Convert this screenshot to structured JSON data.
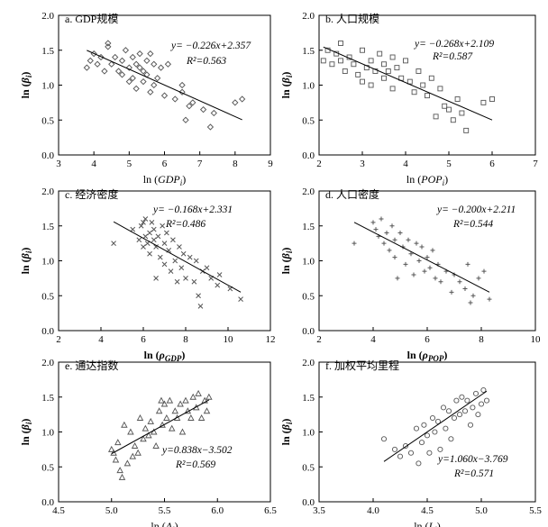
{
  "chart_data": [
    {
      "type": "scatter",
      "title": "a. GDP规模",
      "xlabel": "ln (GDP_i)",
      "ylabel": "ln (β_i)",
      "xlim": [
        3,
        9
      ],
      "ylim": [
        0,
        2
      ],
      "x_ticks": [
        "3",
        "4",
        "5",
        "6",
        "7",
        "8",
        "9"
      ],
      "y_ticks": [
        "0.0",
        "0.5",
        "1.0",
        "1.5",
        "2.0"
      ],
      "marker": "diamond",
      "equation": "y= −0.226x+2.357",
      "r2": "R²=0.563",
      "fit": {
        "slope": -0.226,
        "intercept": 2.357,
        "x_range": [
          3.8,
          8.2
        ]
      },
      "points": [
        [
          3.8,
          1.25
        ],
        [
          3.9,
          1.35
        ],
        [
          4.0,
          1.45
        ],
        [
          4.1,
          1.3
        ],
        [
          4.2,
          1.4
        ],
        [
          4.3,
          1.2
        ],
        [
          4.4,
          1.55
        ],
        [
          4.4,
          1.6
        ],
        [
          4.5,
          1.3
        ],
        [
          4.6,
          1.4
        ],
        [
          4.7,
          1.2
        ],
        [
          4.8,
          1.35
        ],
        [
          4.8,
          1.15
        ],
        [
          4.9,
          1.5
        ],
        [
          5.0,
          1.25
        ],
        [
          5.0,
          1.05
        ],
        [
          5.1,
          1.4
        ],
        [
          5.1,
          1.1
        ],
        [
          5.2,
          1.3
        ],
        [
          5.2,
          0.95
        ],
        [
          5.3,
          1.25
        ],
        [
          5.3,
          1.45
        ],
        [
          5.4,
          1.2
        ],
        [
          5.4,
          1.05
        ],
        [
          5.5,
          1.35
        ],
        [
          5.5,
          1.15
        ],
        [
          5.6,
          0.9
        ],
        [
          5.6,
          1.45
        ],
        [
          5.7,
          1.3
        ],
        [
          5.7,
          1.0
        ],
        [
          5.8,
          1.1
        ],
        [
          5.9,
          1.25
        ],
        [
          6.0,
          0.85
        ],
        [
          6.1,
          1.3
        ],
        [
          6.3,
          0.8
        ],
        [
          6.5,
          1.0
        ],
        [
          6.5,
          0.9
        ],
        [
          6.6,
          0.5
        ],
        [
          6.7,
          0.7
        ],
        [
          6.8,
          0.75
        ],
        [
          7.1,
          0.65
        ],
        [
          7.3,
          0.4
        ],
        [
          7.4,
          0.6
        ],
        [
          8.0,
          0.75
        ],
        [
          8.2,
          0.8
        ]
      ]
    },
    {
      "type": "scatter",
      "title": "b. 人口规模",
      "xlabel": "ln (POP_i)",
      "ylabel": "ln (β_i)",
      "xlim": [
        2,
        7
      ],
      "ylim": [
        0,
        2
      ],
      "x_ticks": [
        "2",
        "3",
        "4",
        "5",
        "6",
        "7"
      ],
      "y_ticks": [
        "0.0",
        "0.5",
        "1.0",
        "1.5",
        "2.0"
      ],
      "marker": "square",
      "equation": "y= −0.268x+2.109",
      "r2": "R²=0.587",
      "fit": {
        "slope": -0.268,
        "intercept": 2.109,
        "x_range": [
          2.1,
          6.0
        ]
      },
      "points": [
        [
          2.1,
          1.35
        ],
        [
          2.2,
          1.5
        ],
        [
          2.3,
          1.3
        ],
        [
          2.4,
          1.45
        ],
        [
          2.5,
          1.6
        ],
        [
          2.5,
          1.35
        ],
        [
          2.6,
          1.2
        ],
        [
          2.7,
          1.4
        ],
        [
          2.8,
          1.3
        ],
        [
          2.9,
          1.15
        ],
        [
          3.0,
          1.5
        ],
        [
          3.0,
          1.05
        ],
        [
          3.1,
          1.25
        ],
        [
          3.2,
          1.35
        ],
        [
          3.2,
          1.0
        ],
        [
          3.3,
          1.2
        ],
        [
          3.4,
          1.45
        ],
        [
          3.5,
          1.1
        ],
        [
          3.5,
          1.3
        ],
        [
          3.6,
          1.2
        ],
        [
          3.7,
          1.4
        ],
        [
          3.7,
          0.95
        ],
        [
          3.8,
          1.25
        ],
        [
          3.9,
          1.1
        ],
        [
          4.0,
          1.35
        ],
        [
          4.1,
          1.05
        ],
        [
          4.2,
          0.9
        ],
        [
          4.3,
          1.2
        ],
        [
          4.4,
          1.0
        ],
        [
          4.5,
          0.85
        ],
        [
          4.6,
          1.1
        ],
        [
          4.7,
          0.55
        ],
        [
          4.8,
          0.95
        ],
        [
          4.9,
          0.7
        ],
        [
          5.0,
          0.65
        ],
        [
          5.1,
          0.5
        ],
        [
          5.2,
          0.8
        ],
        [
          5.3,
          0.6
        ],
        [
          5.4,
          0.35
        ],
        [
          5.8,
          0.75
        ],
        [
          6.0,
          0.8
        ]
      ]
    },
    {
      "type": "scatter",
      "title": "c. 经济密度",
      "xlabel": "ln (ρ_GDP)",
      "ylabel": "ln (β_i)",
      "xlim": [
        2,
        12
      ],
      "ylim": [
        0,
        2
      ],
      "x_ticks": [
        "2",
        "4",
        "6",
        "8",
        "10",
        "12"
      ],
      "y_ticks": [
        "0.0",
        "0.5",
        "1.0",
        "1.5",
        "2.0"
      ],
      "marker": "x",
      "equation": "y= −0.168x+2.331",
      "r2": "R²=0.486",
      "fit": {
        "slope": -0.168,
        "intercept": 2.331,
        "x_range": [
          4.6,
          10.6
        ]
      },
      "points": [
        [
          4.6,
          1.25
        ],
        [
          5.5,
          1.45
        ],
        [
          5.8,
          1.3
        ],
        [
          5.9,
          1.5
        ],
        [
          6.0,
          1.2
        ],
        [
          6.0,
          1.55
        ],
        [
          6.1,
          1.35
        ],
        [
          6.1,
          1.6
        ],
        [
          6.2,
          1.25
        ],
        [
          6.3,
          1.4
        ],
        [
          6.3,
          1.1
        ],
        [
          6.4,
          1.55
        ],
        [
          6.5,
          1.3
        ],
        [
          6.5,
          1.45
        ],
        [
          6.6,
          1.2
        ],
        [
          6.6,
          0.75
        ],
        [
          6.7,
          1.35
        ],
        [
          6.8,
          1.05
        ],
        [
          6.9,
          1.5
        ],
        [
          7.0,
          1.25
        ],
        [
          7.0,
          0.95
        ],
        [
          7.1,
          1.4
        ],
        [
          7.2,
          1.15
        ],
        [
          7.3,
          0.85
        ],
        [
          7.4,
          1.3
        ],
        [
          7.5,
          1.0
        ],
        [
          7.6,
          0.7
        ],
        [
          7.7,
          1.2
        ],
        [
          7.8,
          0.9
        ],
        [
          7.9,
          1.1
        ],
        [
          8.0,
          0.75
        ],
        [
          8.2,
          1.05
        ],
        [
          8.4,
          0.7
        ],
        [
          8.5,
          1.0
        ],
        [
          8.6,
          0.5
        ],
        [
          8.7,
          0.35
        ],
        [
          8.8,
          0.85
        ],
        [
          9.0,
          0.9
        ],
        [
          9.2,
          0.75
        ],
        [
          9.5,
          0.65
        ],
        [
          9.6,
          0.8
        ],
        [
          10.1,
          0.6
        ],
        [
          10.6,
          0.45
        ]
      ]
    },
    {
      "type": "scatter",
      "title": "d. 人口密度",
      "xlabel": "ln (ρ_POP)",
      "ylabel": "ln (β_i)",
      "xlim": [
        2,
        10
      ],
      "ylim": [
        0,
        2
      ],
      "x_ticks": [
        "2",
        "4",
        "6",
        "8",
        "10"
      ],
      "y_ticks": [
        "0.0",
        "0.5",
        "1.0",
        "1.5",
        "2.0"
      ],
      "marker": "plus",
      "equation": "y= −0.200x+2.211",
      "r2": "R²=0.544",
      "fit": {
        "slope": -0.2,
        "intercept": 2.211,
        "x_range": [
          3.3,
          8.3
        ]
      },
      "points": [
        [
          3.3,
          1.25
        ],
        [
          4.0,
          1.55
        ],
        [
          4.1,
          1.45
        ],
        [
          4.2,
          1.35
        ],
        [
          4.3,
          1.6
        ],
        [
          4.4,
          1.25
        ],
        [
          4.5,
          1.4
        ],
        [
          4.6,
          1.15
        ],
        [
          4.7,
          1.5
        ],
        [
          4.8,
          1.3
        ],
        [
          4.8,
          1.05
        ],
        [
          4.9,
          0.75
        ],
        [
          5.0,
          1.4
        ],
        [
          5.1,
          1.2
        ],
        [
          5.2,
          0.95
        ],
        [
          5.3,
          1.3
        ],
        [
          5.4,
          1.1
        ],
        [
          5.5,
          0.8
        ],
        [
          5.6,
          1.25
        ],
        [
          5.7,
          1.0
        ],
        [
          5.8,
          1.2
        ],
        [
          5.9,
          0.85
        ],
        [
          6.0,
          1.05
        ],
        [
          6.1,
          0.9
        ],
        [
          6.2,
          1.15
        ],
        [
          6.3,
          0.75
        ],
        [
          6.4,
          0.95
        ],
        [
          6.5,
          0.7
        ],
        [
          6.7,
          0.85
        ],
        [
          6.9,
          0.55
        ],
        [
          7.0,
          0.8
        ],
        [
          7.2,
          0.7
        ],
        [
          7.4,
          0.6
        ],
        [
          7.5,
          0.95
        ],
        [
          7.6,
          0.4
        ],
        [
          7.7,
          0.5
        ],
        [
          7.9,
          0.75
        ],
        [
          8.1,
          0.85
        ],
        [
          8.3,
          0.45
        ]
      ]
    },
    {
      "type": "scatter",
      "title": "e. 通达指数",
      "xlabel": "ln (A_i)",
      "ylabel": "ln (β_i)",
      "xlim": [
        4.5,
        6.5
      ],
      "ylim": [
        0,
        2
      ],
      "x_ticks": [
        "4.5",
        "5.0",
        "5.5",
        "6.0",
        "6.5"
      ],
      "y_ticks": [
        "0.0",
        "0.5",
        "1.0",
        "1.5",
        "2.0"
      ],
      "marker": "triangle",
      "equation": "y=0.838x−3.502",
      "r2": "R²=0.569",
      "fit": {
        "slope": 0.838,
        "intercept": -3.502,
        "x_range": [
          5.0,
          5.92
        ]
      },
      "points": [
        [
          5.0,
          0.75
        ],
        [
          5.02,
          0.7
        ],
        [
          5.04,
          0.6
        ],
        [
          5.06,
          0.85
        ],
        [
          5.08,
          0.45
        ],
        [
          5.1,
          0.35
        ],
        [
          5.12,
          1.1
        ],
        [
          5.15,
          0.55
        ],
        [
          5.18,
          1.0
        ],
        [
          5.2,
          0.65
        ],
        [
          5.22,
          0.8
        ],
        [
          5.25,
          0.7
        ],
        [
          5.27,
          1.2
        ],
        [
          5.3,
          0.9
        ],
        [
          5.32,
          1.05
        ],
        [
          5.35,
          0.95
        ],
        [
          5.37,
          1.15
        ],
        [
          5.4,
          1.0
        ],
        [
          5.42,
          0.8
        ],
        [
          5.45,
          1.3
        ],
        [
          5.47,
          1.45
        ],
        [
          5.48,
          1.1
        ],
        [
          5.5,
          1.4
        ],
        [
          5.52,
          1.2
        ],
        [
          5.55,
          1.45
        ],
        [
          5.57,
          1.05
        ],
        [
          5.6,
          1.3
        ],
        [
          5.62,
          1.2
        ],
        [
          5.65,
          1.4
        ],
        [
          5.67,
          1.0
        ],
        [
          5.7,
          1.45
        ],
        [
          5.72,
          1.3
        ],
        [
          5.75,
          1.2
        ],
        [
          5.77,
          1.5
        ],
        [
          5.8,
          1.35
        ],
        [
          5.82,
          1.55
        ],
        [
          5.85,
          1.2
        ],
        [
          5.88,
          1.45
        ],
        [
          5.9,
          1.3
        ],
        [
          5.92,
          1.5
        ]
      ]
    },
    {
      "type": "scatter",
      "title": "f. 加权平均里程",
      "xlabel": "ln (L_i)",
      "ylabel": "ln (β_i)",
      "xlim": [
        3.5,
        5.5
      ],
      "ylim": [
        0,
        2
      ],
      "x_ticks": [
        "3.5",
        "4.0",
        "4.5",
        "5.0",
        "5.5"
      ],
      "y_ticks": [
        "0.0",
        "0.5",
        "1.0",
        "1.5",
        "2.0"
      ],
      "marker": "circle",
      "equation": "y=1.060x−3.769",
      "r2": "R²=0.571",
      "fit": {
        "slope": 1.06,
        "intercept": -3.769,
        "x_range": [
          4.1,
          5.05
        ]
      },
      "points": [
        [
          4.1,
          0.9
        ],
        [
          4.2,
          0.75
        ],
        [
          4.25,
          0.65
        ],
        [
          4.3,
          0.8
        ],
        [
          4.35,
          0.7
        ],
        [
          4.4,
          1.05
        ],
        [
          4.42,
          0.55
        ],
        [
          4.45,
          0.85
        ],
        [
          4.47,
          1.1
        ],
        [
          4.5,
          0.95
        ],
        [
          4.52,
          0.7
        ],
        [
          4.55,
          1.2
        ],
        [
          4.57,
          1.0
        ],
        [
          4.6,
          1.15
        ],
        [
          4.62,
          0.75
        ],
        [
          4.65,
          1.35
        ],
        [
          4.67,
          1.05
        ],
        [
          4.7,
          1.3
        ],
        [
          4.72,
          0.9
        ],
        [
          4.75,
          1.2
        ],
        [
          4.77,
          1.45
        ],
        [
          4.8,
          1.25
        ],
        [
          4.82,
          1.5
        ],
        [
          4.85,
          1.3
        ],
        [
          4.87,
          1.45
        ],
        [
          4.9,
          1.1
        ],
        [
          4.92,
          1.35
        ],
        [
          4.95,
          1.55
        ],
        [
          4.97,
          1.25
        ],
        [
          5.0,
          1.4
        ],
        [
          5.02,
          1.6
        ],
        [
          5.05,
          1.45
        ]
      ]
    }
  ]
}
